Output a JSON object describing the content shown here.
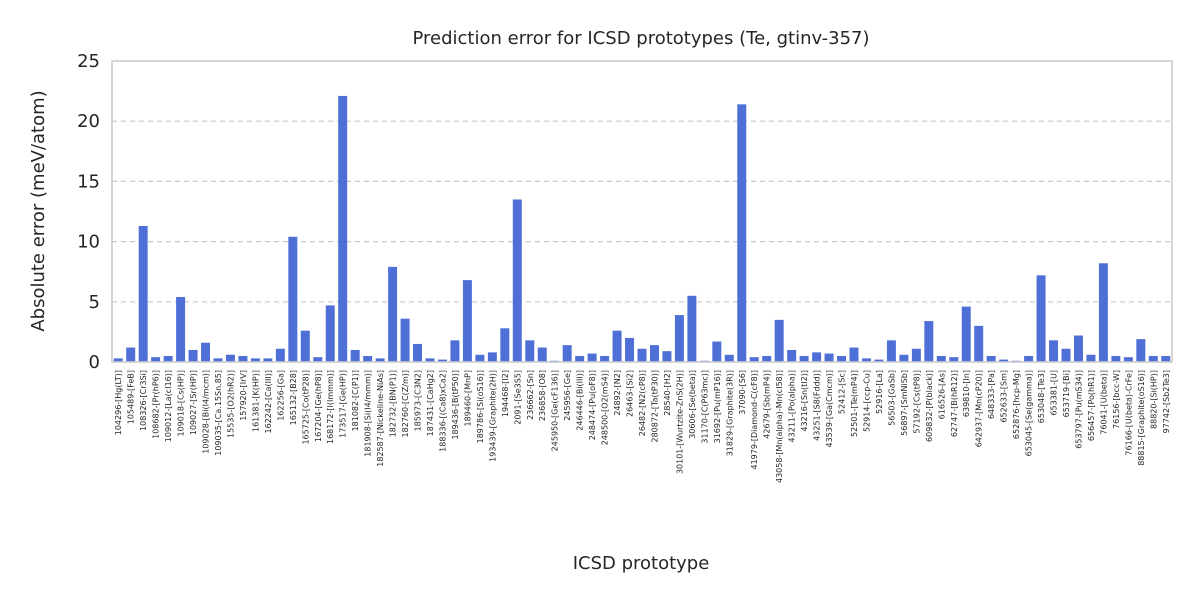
{
  "chart_data": {
    "type": "bar",
    "title": "Prediction error for ICSD prototypes (Te, gtinv-357)",
    "xlabel": "ICSD prototype",
    "ylabel": "Absolute error (meV/atom)",
    "ylim": [
      0,
      25
    ],
    "yticks": [
      0,
      5,
      10,
      15,
      20,
      25
    ],
    "grid": "horizontal-dashed",
    "bar_color": "#4e6fd6",
    "categories": [
      "104296-[Hg(LT)]",
      "105489-[FeB]",
      "108326-[Cr3Si]",
      "108682-[Pr(hP6)]",
      "109012-[La(cI16)]",
      "109018-[Cs(HP)]",
      "109027-[Sr(HP)]",
      "109028-[Bi(I4/mcm)]",
      "109035-[Ca.15Sn.85]",
      "15535-[O2(hR2)]",
      "157920-[IrV]",
      "161381-[K(HP)]",
      "162242-[Ca(III)]",
      "162256-[Ga]",
      "165132-[B28]",
      "165725-[Co(tP28)]",
      "167204-[Ge(hP8)]",
      "168172-[I(Immm)]",
      "173517-[Ge(HP)]",
      "181082-[C(P1)]",
      "181908-[Si(I4/mmm)]",
      "182587-[Nickeline-NiAs]",
      "182732-[BN(P1)]",
      "182760-[C(Z/m)]",
      "185973-[C3N2]",
      "187431-[CaHg2]",
      "188336-[(Ca8)xCa2]",
      "189436-[B(tP50)]",
      "189460-[MnP]",
      "189786-[Si(oS16)]",
      "193439-[Graphite(2H)]",
      "194468-[I2]",
      "2091-[Se3S5]",
      "236662-[Sn]",
      "236858-[O8]",
      "245950-[Ge(cF136)]",
      "245956-[Ge]",
      "246446-[Bi(III)]",
      "248474-[Pu(oF8)]",
      "248500-[O2(mS4)]",
      "24892-[N2]",
      "26463-[Si2]",
      "26482-[N2(cP8)]",
      "280872-[Ta(tP30)]",
      "28540-[H2]",
      "30101-[Wurtzite-ZnS(2H)]",
      "30606-[Se(beta)]",
      "31170-[C(P63mc)]",
      "31692-[Pu(mP16)]",
      "31829-[Graphite(3R)]",
      "37090-[S6]",
      "41979-[Diamond-C(cF8)]",
      "42679-[Sb(mP4)]",
      "43058-[Mn(alpha)-Mn(cI58)]",
      "43211-[Po(alpha)]",
      "43216-[Sn(tI2)]",
      "43251-[S8(Fddd)]",
      "43539-[Ga(Cmcm)]",
      "52412-[Sc]",
      "52501-[Te(mP4)]",
      "52914-[ccp-Cu]",
      "52916-[La]",
      "56503-[GaSb]",
      "56897-[SmNiSb]",
      "57192-[Cs(tP8)]",
      "609832-[P(black)]",
      "616526-[As]",
      "62747-[B(hR12)]",
      "639810-[In]",
      "642937-[Mn(cP20)]",
      "648333-[Pa]",
      "652633-[Sm]",
      "652876-[hcp-Mg]",
      "653045-[Se(gamma)]",
      "653048-[Te3]",
      "653381-[U]",
      "653719-[Bi]",
      "653797-[Pu(mS34)]",
      "656457-[Po(hR1)]",
      "76041-[U(beta)]",
      "76156-[bcc-W]",
      "76166-[U(beta)-CrFe]",
      "88815-[Graphite(oS16)]",
      "88820-[Si(HP)]",
      "97742-[Sb2Te3]"
    ],
    "values": [
      0.3,
      1.2,
      11.3,
      0.4,
      0.5,
      5.4,
      1.0,
      1.6,
      0.3,
      0.6,
      0.5,
      0.3,
      0.3,
      1.1,
      10.4,
      2.6,
      0.4,
      4.7,
      22.1,
      1.0,
      0.5,
      0.3,
      7.9,
      3.6,
      1.5,
      0.3,
      0.2,
      1.8,
      6.8,
      0.6,
      0.8,
      2.8,
      13.5,
      1.8,
      1.2,
      0.1,
      1.4,
      0.5,
      0.7,
      0.5,
      2.6,
      2.0,
      1.1,
      1.4,
      0.9,
      3.9,
      5.5,
      0.1,
      1.7,
      0.6,
      21.4,
      0.4,
      0.5,
      3.5,
      1.0,
      0.5,
      0.8,
      0.7,
      0.5,
      1.2,
      0.3,
      0.2,
      1.8,
      0.6,
      1.1,
      3.4,
      0.5,
      0.4,
      4.6,
      3.0,
      0.5,
      0.2,
      0.1,
      0.5,
      7.2,
      1.8,
      1.1,
      2.2,
      0.6,
      8.2,
      0.5,
      0.4,
      1.9,
      0.5,
      0.5
    ]
  }
}
